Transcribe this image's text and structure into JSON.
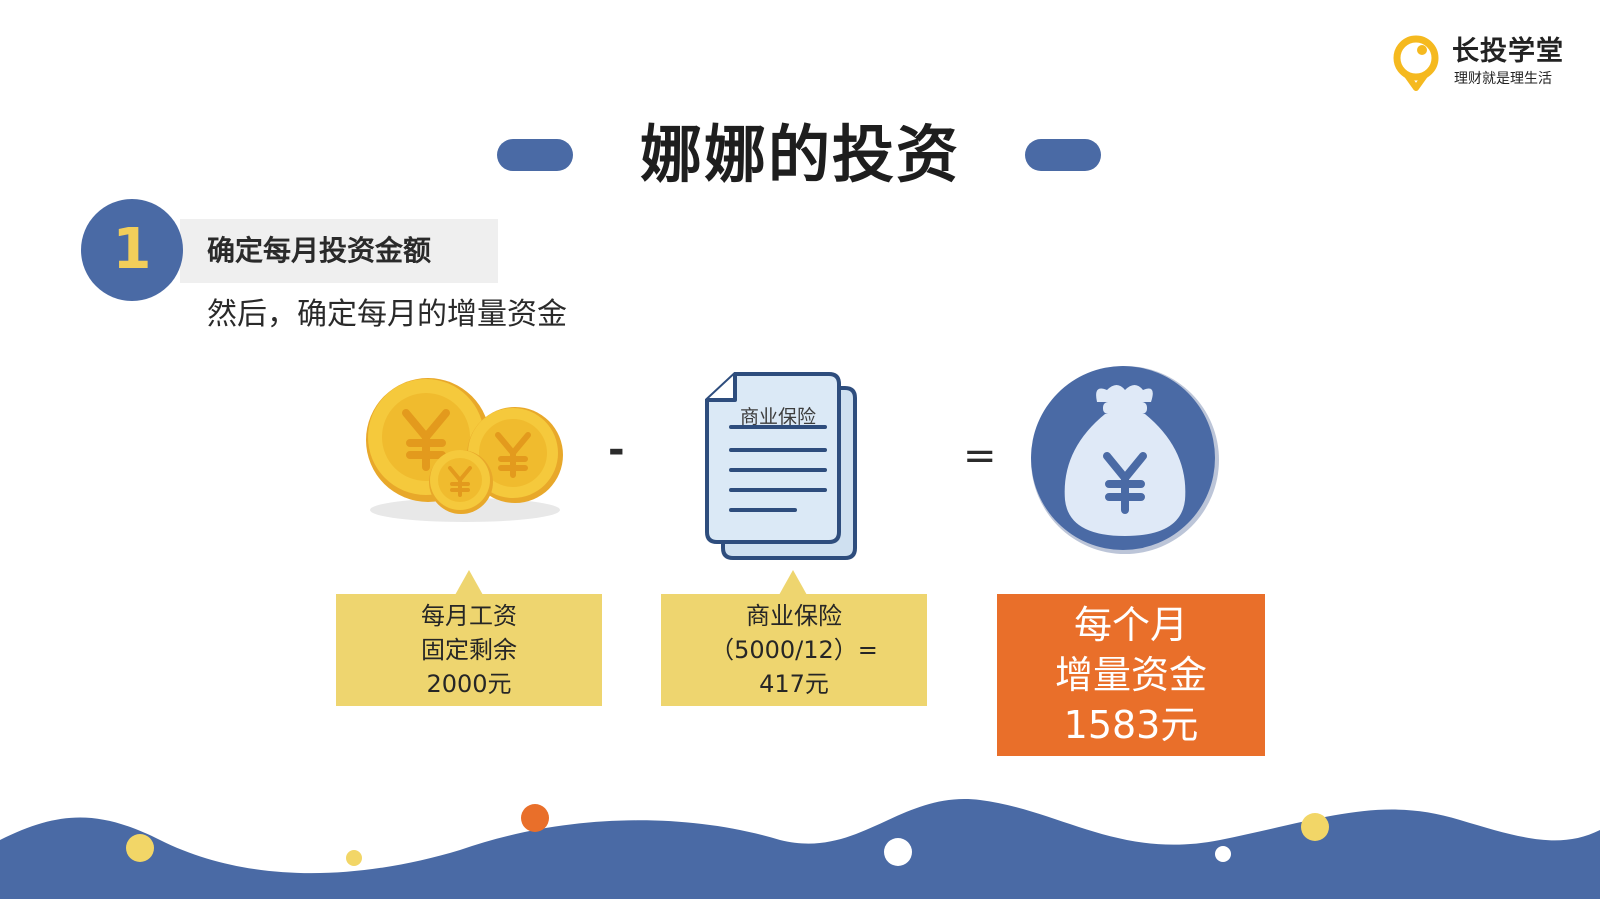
{
  "logo": {
    "name": "长投学堂",
    "slogan": "理财就是理生活",
    "accent": "#f5b91f"
  },
  "title": "娜娜的投资",
  "step": {
    "number": "1",
    "label": "确定每月投资金额",
    "subtitle": "然后，确定每月的增量资金"
  },
  "illustrations": {
    "coins_icon": "yuan-coins-icon",
    "document_icon": "insurance-document-icon",
    "document_title": "商业保险",
    "moneybag_icon": "yuan-money-bag-icon"
  },
  "operators": {
    "minus": "-",
    "equals": "="
  },
  "boxes": {
    "salary": {
      "lines": [
        "每月工资",
        "固定剩余",
        "2000元"
      ]
    },
    "insurance": {
      "lines": [
        "商业保险",
        "（5000/12）=",
        "417元"
      ]
    },
    "result": {
      "lines": [
        "每个月",
        "增量资金",
        "1583元"
      ]
    }
  },
  "colors": {
    "primary_blue": "#4a6aa5",
    "box_yellow": "#eed56f",
    "result_orange": "#e96f2a",
    "number_yellow": "#f2ce5a"
  }
}
